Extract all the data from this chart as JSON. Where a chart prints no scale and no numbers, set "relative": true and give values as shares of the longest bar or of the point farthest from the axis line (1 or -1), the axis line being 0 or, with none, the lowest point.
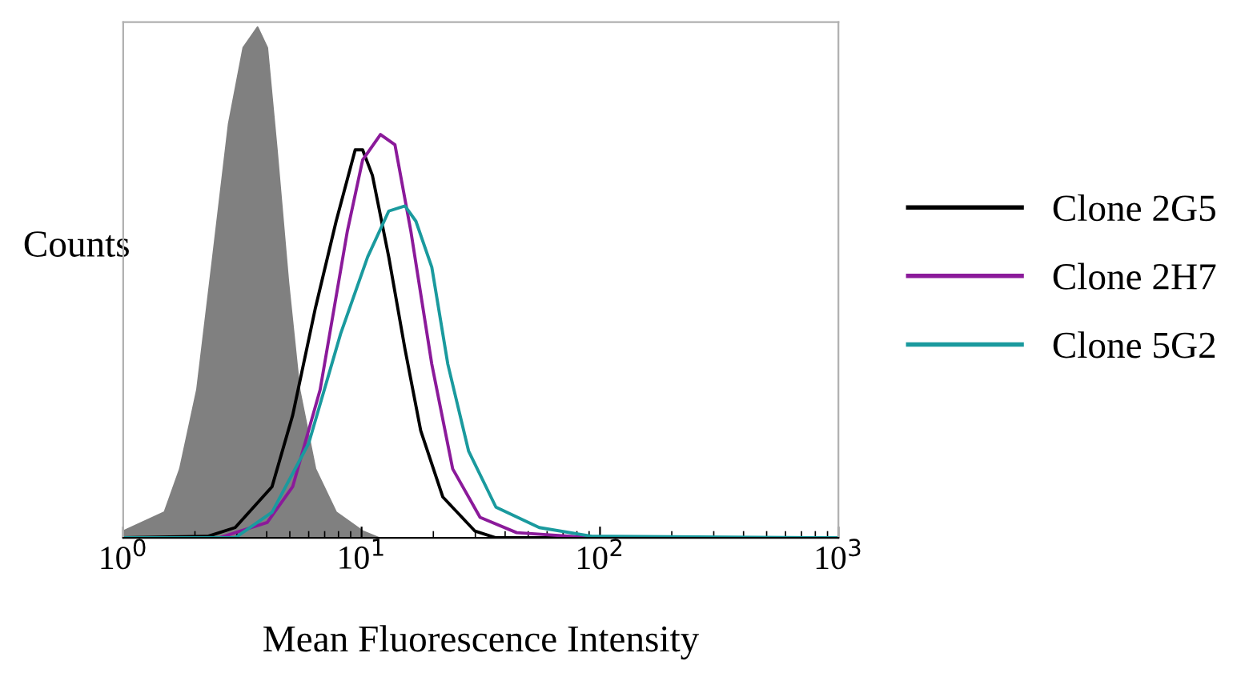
{
  "chart_data": {
    "type": "line",
    "relative": true,
    "xlabel": "Mean Fluorescence Intensity",
    "ylabel": "Counts",
    "log": "x",
    "xlim": [
      1,
      1000
    ],
    "xticks": [
      {
        "value": 1,
        "label": "10$^{0}$"
      },
      {
        "value": 10,
        "label": "10$^{1}$"
      },
      {
        "value": 100,
        "label": "10$^{2}$"
      },
      {
        "value": 1000,
        "label": "10$^{3}$"
      }
    ],
    "grid": false,
    "legend": "right",
    "marker": "none",
    "line_style": "solid",
    "series": [
      {
        "type": "area",
        "color": "#808080",
        "x": [
          1.0,
          1.49,
          1.73,
          2.04,
          2.38,
          2.77,
          3.19,
          3.66,
          4.02,
          4.41,
          4.93,
          5.49,
          6.4,
          7.82,
          10.1,
          11.8,
          1000
        ],
        "values": [
          0.013,
          0.05,
          0.135,
          0.29,
          0.55,
          0.81,
          0.96,
          1.0,
          0.96,
          0.76,
          0.5,
          0.29,
          0.135,
          0.05,
          0.013,
          0,
          0
        ]
      },
      {
        "name": "Clone 2G5",
        "color": "#000000",
        "x": [
          1.0,
          2.27,
          2.95,
          4.21,
          5.14,
          6.4,
          7.82,
          9.4,
          10.1,
          11.1,
          13.0,
          15.2,
          17.7,
          21.9,
          29.9,
          36.6,
          1000
        ],
        "values": [
          0,
          0.003,
          0.02,
          0.1,
          0.24,
          0.45,
          0.62,
          0.76,
          0.76,
          0.71,
          0.55,
          0.37,
          0.21,
          0.08,
          0.013,
          0,
          0
        ]
      },
      {
        "name": "Clone 2H7",
        "color": "#8b1a9a",
        "x": [
          1.0,
          2.53,
          4.02,
          5.14,
          6.7,
          8.71,
          10.1,
          12.0,
          13.8,
          16.1,
          19.7,
          24.1,
          31.4,
          44.7,
          92.4,
          1000
        ],
        "values": [
          0,
          0,
          0.03,
          0.1,
          0.29,
          0.6,
          0.74,
          0.79,
          0.77,
          0.6,
          0.34,
          0.135,
          0.04,
          0.01,
          0,
          0
        ]
      },
      {
        "name": "Clone 5G2",
        "color": "#1a9a9e",
        "x": [
          1.0,
          2.95,
          4.21,
          6.0,
          8.17,
          10.6,
          13.0,
          15.2,
          16.9,
          19.7,
          23.0,
          28.1,
          36.6,
          55.6,
          92.4,
          1000
        ],
        "values": [
          0,
          0,
          0.05,
          0.185,
          0.4,
          0.55,
          0.64,
          0.65,
          0.62,
          0.53,
          0.34,
          0.17,
          0.06,
          0.02,
          0.003,
          0
        ]
      }
    ]
  }
}
